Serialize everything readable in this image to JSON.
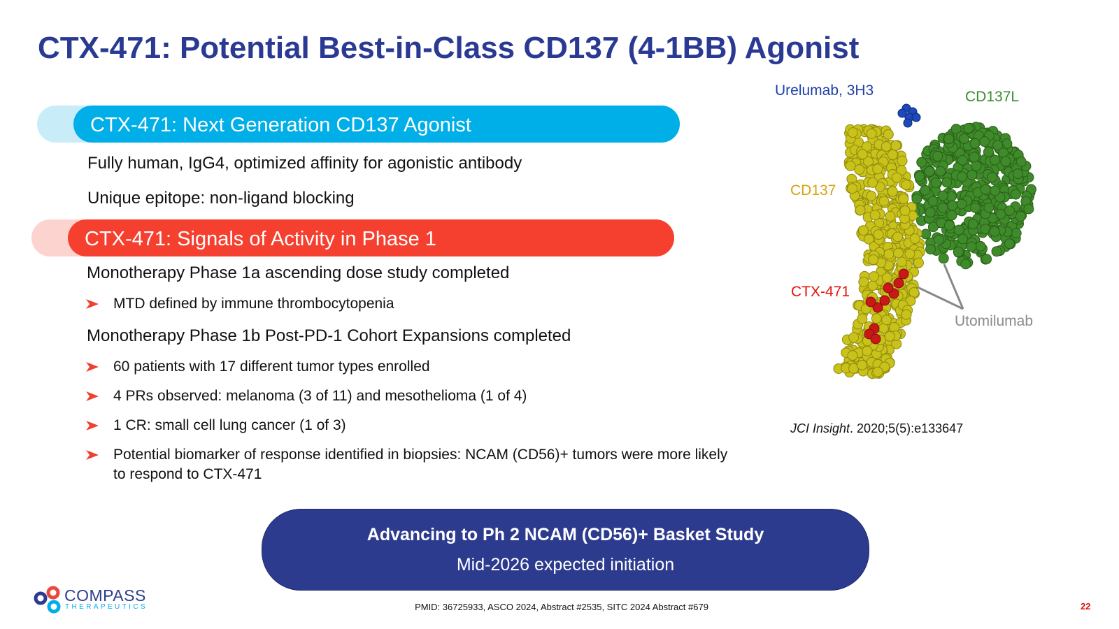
{
  "title": "CTX-471: Potential Best-in-Class CD137 (4-1BB)  Agonist",
  "sections": [
    {
      "header": "CTX-471: Next Generation CD137 Agonist",
      "items": [
        {
          "text": "Fully human, IgG4, optimized affinity for agonistic antibody"
        },
        {
          "text": "Unique epitope: non-ligand blocking"
        }
      ]
    },
    {
      "header": "CTX-471: Signals of Activity in Phase 1",
      "items": [
        {
          "text": "Monotherapy Phase 1a ascending dose study completed",
          "bullets": [
            "MTD defined by immune thrombocytopenia"
          ]
        },
        {
          "text": "Monotherapy Phase 1b Post-PD-1 Cohort Expansions completed",
          "bullets": [
            "60 patients with 17 different tumor types enrolled",
            "4 PRs observed: melanoma (3 of 11) and mesothelioma (1 of 4)",
            "1 CR: small cell lung cancer (1 of 3)",
            "Potential biomarker of response identified in biopsies: NCAM (CD56)+ tumors were more likely to respond to CTX-471"
          ]
        }
      ]
    }
  ],
  "figure": {
    "labels": {
      "urelumab": "Urelumab, 3H3",
      "cd137l": "CD137L",
      "cd137": "CD137",
      "ctx471": "CTX-471",
      "utomilumab": "Utomilumab"
    },
    "citation": {
      "journal": "JCI Insight",
      "details": ". 2020;5(5):e133647"
    }
  },
  "callout": {
    "headline": "Advancing to Ph 2 NCAM (CD56)+ Basket Study",
    "subline": "Mid-2026 expected initiation"
  },
  "footer": {
    "references": "PMID: 36725933, ASCO 2024, Abstract #2535, SITC 2024 Abstract #679",
    "page": "22",
    "logo": {
      "name": "COMPASS",
      "tagline": "THERAPEUTICS"
    }
  }
}
